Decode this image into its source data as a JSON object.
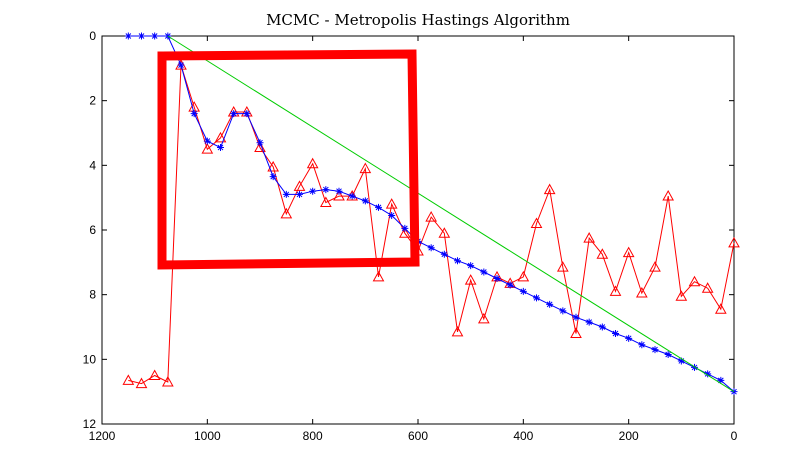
{
  "chart_data": {
    "type": "line",
    "title": "MCMC - Metropolis Hastings Algorithm",
    "xlabel": "",
    "ylabel": "",
    "xlim": [
      1200,
      0
    ],
    "ylim": [
      12,
      0
    ],
    "x_reversed": true,
    "y_reversed": true,
    "x_ticks": [
      1200,
      1000,
      800,
      600,
      400,
      200,
      0
    ],
    "y_ticks": [
      0,
      2,
      4,
      6,
      8,
      10,
      12
    ],
    "grid": false,
    "legend": "none",
    "series": [
      {
        "marker": "triangle",
        "color": "#ff0000",
        "points": [
          [
            1150,
            10.65
          ],
          [
            1125,
            10.75
          ],
          [
            1100,
            10.5
          ],
          [
            1075,
            10.7
          ],
          [
            1050,
            0.9
          ],
          [
            1025,
            2.2
          ],
          [
            1000,
            3.5
          ],
          [
            975,
            3.15
          ],
          [
            950,
            2.35
          ],
          [
            925,
            2.35
          ],
          [
            900,
            3.45
          ],
          [
            875,
            4.05
          ],
          [
            850,
            5.5
          ],
          [
            825,
            4.65
          ],
          [
            800,
            3.95
          ],
          [
            775,
            5.15
          ],
          [
            750,
            4.95
          ],
          [
            725,
            4.95
          ],
          [
            700,
            4.1
          ],
          [
            675,
            7.45
          ],
          [
            650,
            5.2
          ],
          [
            625,
            6.1
          ],
          [
            600,
            6.65
          ],
          [
            575,
            5.6
          ],
          [
            550,
            6.1
          ],
          [
            525,
            9.15
          ],
          [
            500,
            7.55
          ],
          [
            475,
            8.75
          ],
          [
            450,
            7.45
          ],
          [
            425,
            7.65
          ],
          [
            400,
            7.45
          ],
          [
            375,
            5.8
          ],
          [
            350,
            4.75
          ],
          [
            325,
            7.15
          ],
          [
            300,
            9.2
          ],
          [
            275,
            6.25
          ],
          [
            250,
            6.75
          ],
          [
            225,
            7.9
          ],
          [
            200,
            6.7
          ],
          [
            175,
            7.95
          ],
          [
            150,
            7.15
          ],
          [
            125,
            4.95
          ],
          [
            100,
            8.05
          ],
          [
            75,
            7.6
          ],
          [
            50,
            7.8
          ],
          [
            25,
            8.45
          ],
          [
            0,
            6.4
          ]
        ]
      },
      {
        "marker": "asterisk",
        "color": "#0000ff",
        "points": [
          [
            1150,
            0.0
          ],
          [
            1125,
            0.0
          ],
          [
            1100,
            0.0
          ],
          [
            1075,
            0.0
          ],
          [
            1050,
            0.9
          ],
          [
            1025,
            2.4
          ],
          [
            1000,
            3.25
          ],
          [
            975,
            3.45
          ],
          [
            950,
            2.4
          ],
          [
            925,
            2.4
          ],
          [
            900,
            3.3
          ],
          [
            875,
            4.35
          ],
          [
            850,
            4.9
          ],
          [
            825,
            4.9
          ],
          [
            800,
            4.8
          ],
          [
            775,
            4.75
          ],
          [
            750,
            4.8
          ],
          [
            725,
            4.95
          ],
          [
            700,
            5.1
          ],
          [
            675,
            5.3
          ],
          [
            650,
            5.55
          ],
          [
            625,
            5.95
          ],
          [
            600,
            6.35
          ],
          [
            575,
            6.55
          ],
          [
            550,
            6.75
          ],
          [
            525,
            6.95
          ],
          [
            500,
            7.1
          ],
          [
            475,
            7.3
          ],
          [
            450,
            7.5
          ],
          [
            425,
            7.7
          ],
          [
            400,
            7.9
          ],
          [
            375,
            8.1
          ],
          [
            350,
            8.3
          ],
          [
            325,
            8.5
          ],
          [
            300,
            8.7
          ],
          [
            275,
            8.85
          ],
          [
            250,
            9.0
          ],
          [
            225,
            9.2
          ],
          [
            200,
            9.35
          ],
          [
            175,
            9.55
          ],
          [
            150,
            9.7
          ],
          [
            125,
            9.85
          ],
          [
            100,
            10.05
          ],
          [
            75,
            10.25
          ],
          [
            50,
            10.45
          ],
          [
            25,
            10.65
          ],
          [
            0,
            11.0
          ]
        ]
      },
      {
        "marker": "none",
        "color": "#00cc00",
        "points": [
          [
            1075,
            0.0
          ],
          [
            0,
            11.0
          ]
        ]
      }
    ],
    "annotation_color": "#ff0000"
  }
}
